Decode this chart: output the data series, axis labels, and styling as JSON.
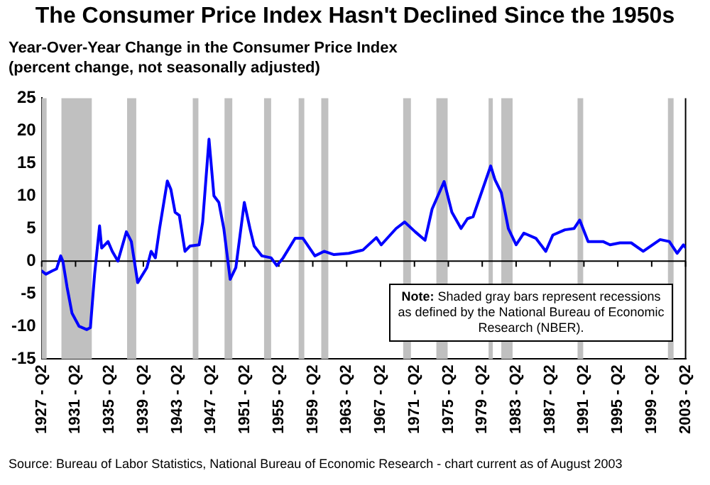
{
  "chart_data": {
    "type": "line",
    "title": "The Consumer Price Index Hasn't Declined Since the 1950s",
    "subtitle": "Year-Over-Year Change in the Consumer Price Index",
    "ylabel": "(percent change, not seasonally adjusted)",
    "annotations": [
      "Note:  Shaded gray bars represent recessions as defined by the National  Bureau of Economic Research (NBER).",
      "Source:  Bureau of Labor Statistics, National Bureau of Economic Research - chart current as of August 2003"
    ],
    "series": [
      {
        "color": "#0000ff",
        "x": [
          "1927-04",
          "1927-10",
          "1928-07",
          "1929-01",
          "1929-07",
          "1929-10",
          "1930-04",
          "1930-11",
          "1931-09",
          "1932-08",
          "1933-01",
          "1933-07",
          "1934-02",
          "1934-05",
          "1935-02",
          "1935-08",
          "1936-04",
          "1937-04",
          "1937-11",
          "1938-08",
          "1939-09",
          "1940-03",
          "1940-09",
          "1941-03",
          "1942-02",
          "1942-07",
          "1943-01",
          "1943-07",
          "1944-03",
          "1944-10",
          "1945-11",
          "1946-04",
          "1947-01",
          "1947-08",
          "1948-03",
          "1948-10",
          "1949-07",
          "1950-03",
          "1951-03",
          "1951-11",
          "1952-05",
          "1953-04",
          "1954-05",
          "1955-01",
          "1955-10",
          "1957-03",
          "1958-02",
          "1959-07",
          "1960-08",
          "1961-10",
          "1963-07",
          "1965-03",
          "1966-10",
          "1967-05",
          "1969-02",
          "1970-02",
          "1971-05",
          "1972-07",
          "1973-05",
          "1974-10",
          "1975-09",
          "1976-10",
          "1977-07",
          "1978-03",
          "1980-04",
          "1980-10",
          "1981-07",
          "1982-05",
          "1983-04",
          "1984-03",
          "1985-08",
          "1986-10",
          "1987-08",
          "1989-01",
          "1990-02",
          "1990-10",
          "1991-10",
          "1993-07",
          "1994-05",
          "1995-07",
          "1996-11",
          "1998-04",
          "2000-04",
          "2001-05",
          "2002-04",
          "2003-01",
          "2003-04"
        ],
        "values": [
          -1.5,
          -2,
          -1.5,
          -1.2,
          0.8,
          0,
          -4,
          -8,
          -10,
          -10.5,
          -10.2,
          -2,
          5.4,
          2,
          3,
          1.5,
          0,
          4.5,
          3,
          -3.3,
          -1,
          1.5,
          0.5,
          5,
          12.3,
          11,
          7.5,
          7,
          1.5,
          2.3,
          2.5,
          6,
          18.7,
          10,
          9,
          5,
          -2.8,
          -1,
          9,
          5,
          2.3,
          0.8,
          0.5,
          -0.7,
          0.5,
          3.5,
          3.5,
          0.8,
          1.5,
          1,
          1.2,
          1.7,
          3.6,
          2.5,
          5,
          6,
          4.5,
          3.2,
          8,
          12.2,
          7.5,
          5,
          6.5,
          6.8,
          14.6,
          12.5,
          10.5,
          5,
          2.5,
          4.3,
          3.5,
          1.5,
          4,
          4.8,
          5,
          6.3,
          3,
          3,
          2.5,
          2.8,
          2.8,
          1.5,
          3.3,
          3,
          1.2,
          2.5,
          2.1
        ]
      }
    ],
    "xlim": [
      "1927-04",
      "2003-04"
    ],
    "xticks": [
      {
        "value": "1927-04",
        "label": "1927 - Q2"
      },
      {
        "value": "1931-04",
        "label": "1931 - Q2"
      },
      {
        "value": "1935-04",
        "label": "1935 - Q2"
      },
      {
        "value": "1939-04",
        "label": "1939 - Q2"
      },
      {
        "value": "1943-04",
        "label": "1943 - Q2"
      },
      {
        "value": "1947-04",
        "label": "1947 - Q2"
      },
      {
        "value": "1951-04",
        "label": "1951 - Q2"
      },
      {
        "value": "1955-04",
        "label": "1955 - Q2"
      },
      {
        "value": "1959-04",
        "label": "1959 - Q2"
      },
      {
        "value": "1963-04",
        "label": "1963 - Q2"
      },
      {
        "value": "1967-04",
        "label": "1967 - Q2"
      },
      {
        "value": "1971-04",
        "label": "1971 - Q2"
      },
      {
        "value": "1975-04",
        "label": "1975 - Q2"
      },
      {
        "value": "1979-04",
        "label": "1979 - Q2"
      },
      {
        "value": "1983-04",
        "label": "1983 - Q2"
      },
      {
        "value": "1987-04",
        "label": "1987 - Q2"
      },
      {
        "value": "1991-04",
        "label": "1991 - Q2"
      },
      {
        "value": "1995-04",
        "label": "1995 - Q2"
      },
      {
        "value": "1999-04",
        "label": "1999 - Q2"
      },
      {
        "value": "2003-04",
        "label": "2003 - Q2"
      }
    ],
    "ylim": [
      -15,
      25
    ],
    "yticks": [
      -15,
      -10,
      -5,
      0,
      5,
      10,
      15,
      20,
      25
    ],
    "bands": [
      {
        "axis": "x",
        "from": "1927-04",
        "to": "1927-11",
        "color": "#c0c0c0"
      },
      {
        "axis": "x",
        "from": "1929-08",
        "to": "1933-03",
        "color": "#c0c0c0"
      },
      {
        "axis": "x",
        "from": "1937-05",
        "to": "1938-06",
        "color": "#c0c0c0"
      },
      {
        "axis": "x",
        "from": "1945-02",
        "to": "1945-10",
        "color": "#c0c0c0"
      },
      {
        "axis": "x",
        "from": "1948-11",
        "to": "1949-10",
        "color": "#c0c0c0"
      },
      {
        "axis": "x",
        "from": "1953-07",
        "to": "1954-05",
        "color": "#c0c0c0"
      },
      {
        "axis": "x",
        "from": "1957-08",
        "to": "1958-04",
        "color": "#c0c0c0"
      },
      {
        "axis": "x",
        "from": "1960-04",
        "to": "1961-02",
        "color": "#c0c0c0"
      },
      {
        "axis": "x",
        "from": "1969-12",
        "to": "1970-11",
        "color": "#c0c0c0"
      },
      {
        "axis": "x",
        "from": "1973-11",
        "to": "1975-03",
        "color": "#c0c0c0"
      },
      {
        "axis": "x",
        "from": "1980-01",
        "to": "1980-07",
        "color": "#c0c0c0"
      },
      {
        "axis": "x",
        "from": "1981-07",
        "to": "1982-11",
        "color": "#c0c0c0"
      },
      {
        "axis": "x",
        "from": "1990-07",
        "to": "1991-03",
        "color": "#c0c0c0"
      },
      {
        "axis": "x",
        "from": "2001-03",
        "to": "2001-11",
        "color": "#c0c0c0"
      }
    ],
    "ref_lines": [
      {
        "axis": "y",
        "value": 0,
        "color": "#000000"
      }
    ],
    "legend": false,
    "marker": "none",
    "grid": false
  }
}
